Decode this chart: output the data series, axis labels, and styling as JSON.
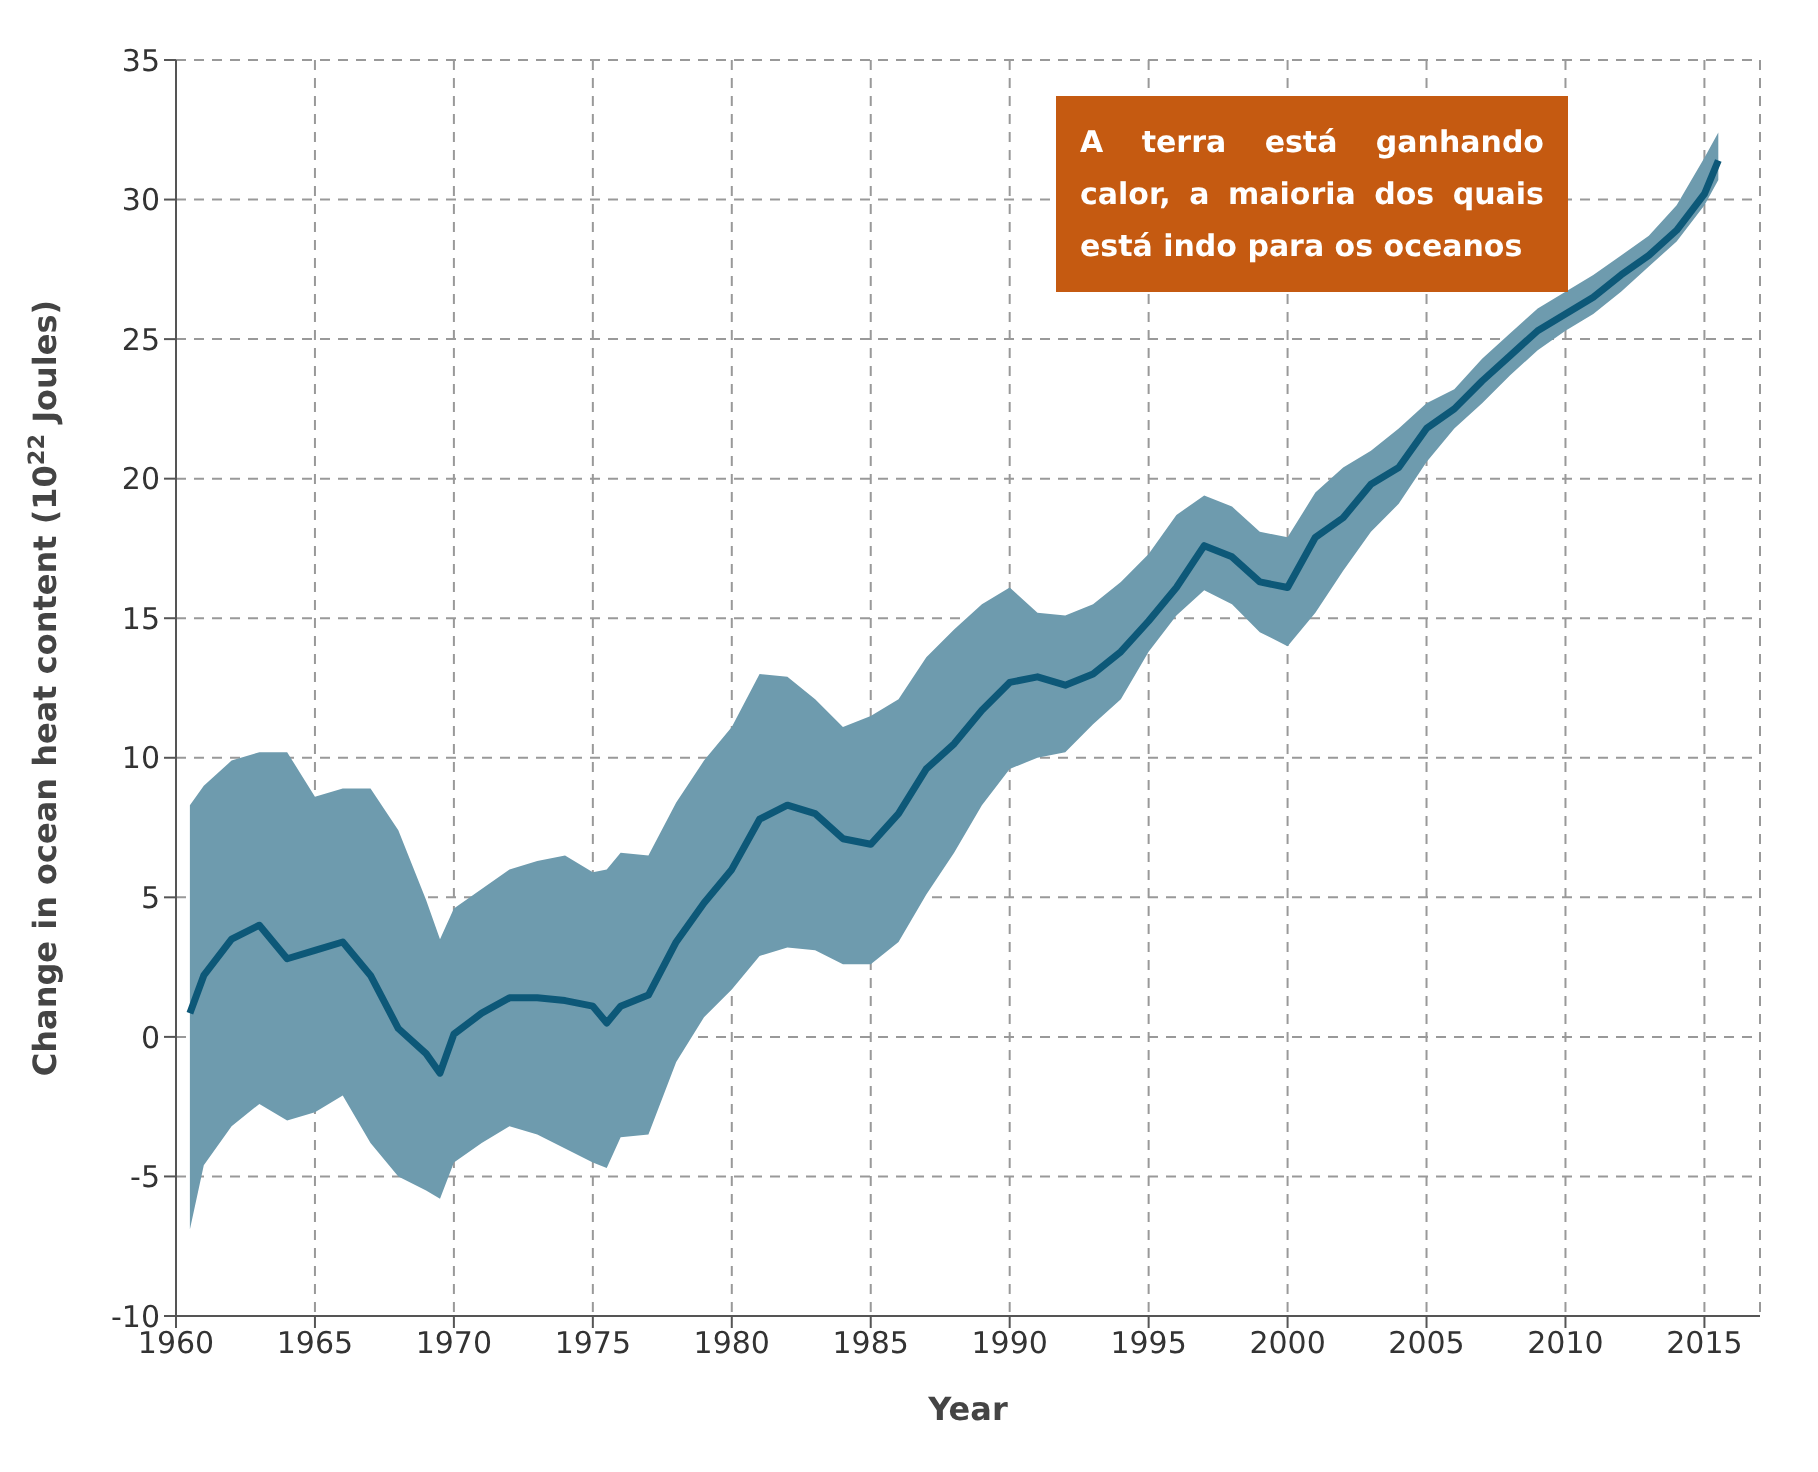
{
  "chart_data": {
    "type": "line",
    "xlabel": "Year",
    "ylabel": "Change in ocean heat content (10$^{22}$ Joules)",
    "annotations": [
      "A terra está ganhando calor, a maioria dos quais está indo para os oceanos"
    ],
    "x": [
      1960.5,
      1961,
      1962,
      1963,
      1964,
      1965,
      1966,
      1967,
      1968,
      1969,
      1969.5,
      1970,
      1971,
      1972,
      1973,
      1974,
      1975,
      1975.5,
      1976,
      1977,
      1978,
      1979,
      1980,
      1981,
      1982,
      1983,
      1984,
      1985,
      1986,
      1987,
      1988,
      1989,
      1990,
      1991,
      1992,
      1993,
      1994,
      1995,
      1996,
      1997,
      1998,
      1999,
      2000,
      2001,
      2002,
      2003,
      2004,
      2005,
      2006,
      2007,
      2008,
      2009,
      2010,
      2011,
      2012,
      2013,
      2014,
      2015,
      2015.5
    ],
    "series": [
      {
        "color": "#0d5878",
        "values": [
          0.85,
          2.2,
          3.5,
          4.0,
          2.8,
          3.1,
          3.4,
          2.2,
          0.3,
          -0.6,
          -1.3,
          0.1,
          0.85,
          1.4,
          1.4,
          1.3,
          1.1,
          0.5,
          1.1,
          1.5,
          3.4,
          4.8,
          6.0,
          7.8,
          8.3,
          8.0,
          7.1,
          6.9,
          8.0,
          9.6,
          10.5,
          11.7,
          12.7,
          12.9,
          12.6,
          13.0,
          13.8,
          14.9,
          16.1,
          17.6,
          17.2,
          16.3,
          16.1,
          17.9,
          18.6,
          19.8,
          20.4,
          21.8,
          22.5,
          23.5,
          24.4,
          25.3,
          25.9,
          26.5,
          27.3,
          28.0,
          28.9,
          30.2,
          31.4
        ],
        "lower": [
          -6.9,
          -4.6,
          -3.2,
          -2.4,
          -3.0,
          -2.7,
          -2.1,
          -3.8,
          -5.0,
          -5.5,
          -5.8,
          -4.5,
          -3.8,
          -3.2,
          -3.5,
          -4.0,
          -4.5,
          -4.7,
          -3.6,
          -3.5,
          -0.9,
          0.7,
          1.7,
          2.9,
          3.2,
          3.1,
          2.6,
          2.6,
          3.4,
          5.1,
          6.6,
          8.3,
          9.6,
          10.0,
          10.2,
          11.2,
          12.1,
          13.8,
          15.1,
          16.0,
          15.5,
          14.5,
          14.0,
          15.2,
          16.7,
          18.1,
          19.1,
          20.6,
          21.8,
          22.7,
          23.7,
          24.6,
          25.3,
          25.9,
          26.7,
          27.6,
          28.5,
          29.8,
          30.7
        ],
        "upper": [
          8.3,
          9.0,
          9.9,
          10.2,
          10.2,
          8.6,
          8.9,
          8.9,
          7.4,
          4.9,
          3.5,
          4.6,
          5.3,
          6.0,
          6.3,
          6.5,
          5.9,
          6.0,
          6.6,
          6.5,
          8.4,
          9.9,
          11.1,
          13.0,
          12.9,
          12.1,
          11.1,
          11.5,
          12.1,
          13.6,
          14.6,
          15.5,
          16.1,
          15.2,
          15.1,
          15.5,
          16.3,
          17.3,
          18.7,
          19.4,
          19.0,
          18.1,
          17.9,
          19.5,
          20.4,
          21.0,
          21.8,
          22.7,
          23.2,
          24.3,
          25.2,
          26.1,
          26.7,
          27.3,
          28.0,
          28.7,
          29.8,
          31.5,
          32.4
        ]
      }
    ],
    "xlim": [
      1960,
      2017
    ],
    "xticks": [
      1960,
      1965,
      1970,
      1975,
      1980,
      1985,
      1990,
      1995,
      2000,
      2005,
      2010,
      2015
    ],
    "ylim": [
      -10,
      35
    ],
    "yticks": [
      -10,
      -5,
      0,
      5,
      10,
      15,
      20,
      25,
      30,
      35
    ],
    "grid": true
  }
}
